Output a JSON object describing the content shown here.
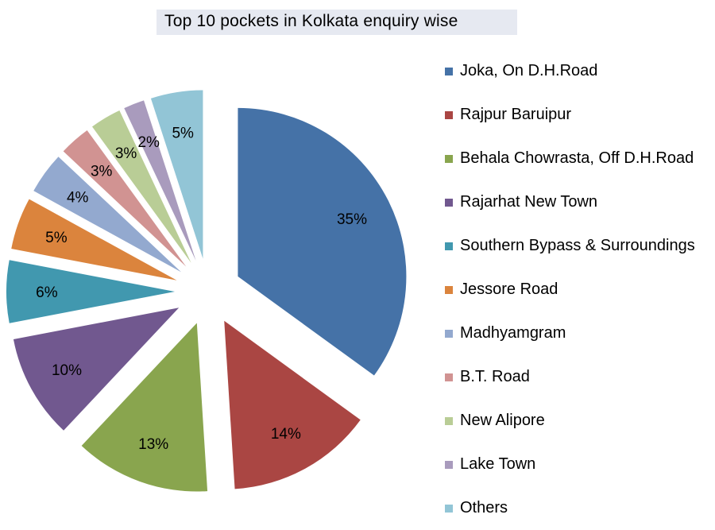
{
  "chart_data": {
    "type": "pie",
    "title": "Top 10 pockets in Kolkata enquiry wise",
    "legend_position": "right",
    "exploded": true,
    "slices": [
      {
        "label": "Joka, On D.H.Road",
        "value": 35,
        "display": "35%",
        "color": "#4572a7"
      },
      {
        "label": "Rajpur Baruipur",
        "value": 14,
        "display": "14%",
        "color": "#aa4643"
      },
      {
        "label": "Behala Chowrasta, Off D.H.Road",
        "value": 13,
        "display": "13%",
        "color": "#89a54e"
      },
      {
        "label": "Rajarhat New Town",
        "value": 10,
        "display": "10%",
        "color": "#71588f"
      },
      {
        "label": "Southern Bypass & Surroundings",
        "value": 6,
        "display": "6%",
        "color": "#4198af"
      },
      {
        "label": "Jessore Road",
        "value": 5,
        "display": "5%",
        "color": "#db843d"
      },
      {
        "label": "Madhyamgram",
        "value": 4,
        "display": "4%",
        "color": "#93a9cf"
      },
      {
        "label": "B.T. Road",
        "value": 3,
        "display": "3%",
        "color": "#d19392"
      },
      {
        "label": "New Alipore",
        "value": 3,
        "display": "3%",
        "color": "#b9cd96"
      },
      {
        "label": "Lake Town",
        "value": 2,
        "display": "2%",
        "color": "#a99bbd"
      },
      {
        "label": "Others",
        "value": 5,
        "display": "5%",
        "color": "#92c5d6"
      }
    ]
  }
}
